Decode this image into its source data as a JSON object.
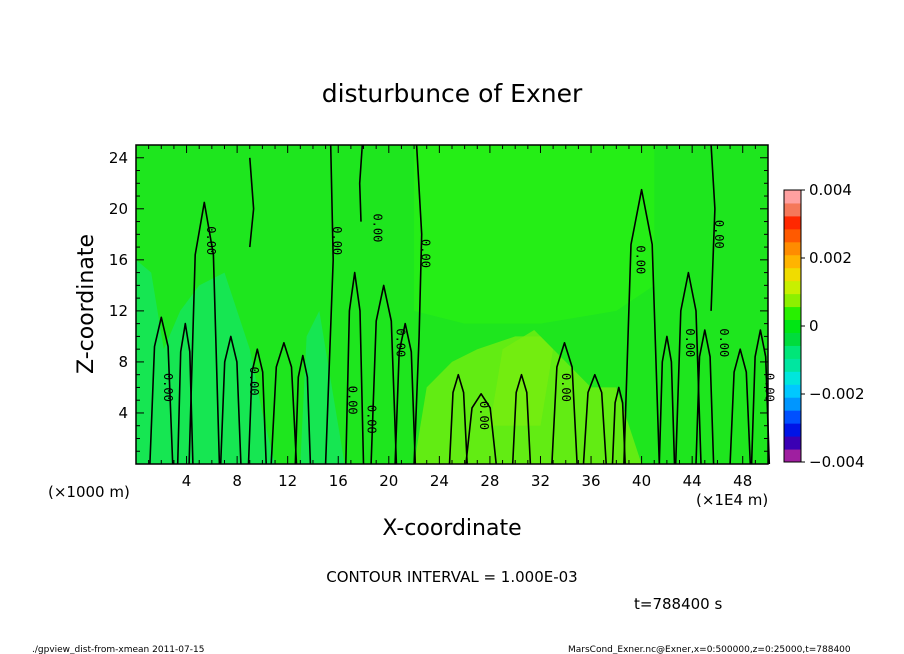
{
  "chart_data": {
    "type": "heatmap",
    "title": "disturbunce of Exner",
    "xlabel": "X-coordinate",
    "ylabel": "Z-coordinate",
    "x_unit_left": "(×1000 m)",
    "x_unit_right": "(×1E4 m)",
    "xlim": [
      0,
      50
    ],
    "ylim": [
      0,
      25
    ],
    "xticks": [
      4,
      8,
      12,
      16,
      20,
      24,
      28,
      32,
      36,
      40,
      44,
      48
    ],
    "yticks": [
      4,
      8,
      12,
      16,
      20,
      24
    ],
    "colorbar": {
      "range": [
        -0.004,
        0.004
      ],
      "ticks": [
        0.004,
        0.002,
        0,
        -0.002,
        -0.004
      ],
      "tick_labels": [
        "0.004",
        "0.002",
        "0",
        "−0.002",
        "−0.004"
      ],
      "colors": [
        "#9f1fa0",
        "#3b00b4",
        "#0014e6",
        "#0050ff",
        "#0096ff",
        "#00c8ff",
        "#00e6dc",
        "#00e6a0",
        "#00e678",
        "#00dc3c",
        "#00e614",
        "#28f000",
        "#8cf000",
        "#c8f000",
        "#f0dc00",
        "#ffb400",
        "#ff8c00",
        "#ff5a00",
        "#ff2800",
        "#f5785a",
        "#ffa0a0"
      ]
    },
    "contour_labels": [
      {
        "x": 2.2,
        "z": 6.0,
        "text": "0.00"
      },
      {
        "x": 5.6,
        "z": 17.5,
        "text": "0.00"
      },
      {
        "x": 9.0,
        "z": 6.5,
        "text": "0.00"
      },
      {
        "x": 15.6,
        "z": 17.5,
        "text": "0.00"
      },
      {
        "x": 16.8,
        "z": 5.0,
        "text": "0.00"
      },
      {
        "x": 18.8,
        "z": 18.5,
        "text": "0.00"
      },
      {
        "x": 18.3,
        "z": 3.5,
        "text": "0.00"
      },
      {
        "x": 20.6,
        "z": 9.5,
        "text": "0.00"
      },
      {
        "x": 22.6,
        "z": 16.5,
        "text": "0.00"
      },
      {
        "x": 27.2,
        "z": 3.8,
        "text": "0.00"
      },
      {
        "x": 33.7,
        "z": 6.0,
        "text": "0.00"
      },
      {
        "x": 39.6,
        "z": 16.0,
        "text": "0.00"
      },
      {
        "x": 43.5,
        "z": 9.5,
        "text": "0.00"
      },
      {
        "x": 45.8,
        "z": 18.0,
        "text": "0.00"
      },
      {
        "x": 46.2,
        "z": 9.5,
        "text": "0.00"
      },
      {
        "x": 49.8,
        "z": 6.0,
        "text": "0.00"
      }
    ],
    "contour_interval_text": "CONTOUR INTERVAL = 1.000E-03",
    "time_text": "t=788400 s"
  },
  "footer": {
    "left": "./gpview_dist-from-xmean  2011-07-15",
    "right": "MarsCond_Exner.nc@Exner,x=0:500000,z=0:25000,t=788400"
  },
  "colors": {
    "background_green": "#1ee61e",
    "upper_green": "#28f014",
    "teal_green": "#14e664",
    "light_green": "#7aee10"
  }
}
